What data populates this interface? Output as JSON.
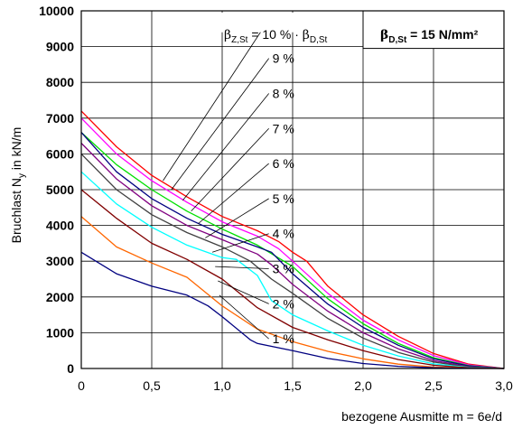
{
  "chart_data": {
    "type": "line",
    "ylabel_main": "Bruchlast N",
    "ylabel_sub": "y",
    "ylabel_rest": " in kN/m",
    "xlabel": "bezogene Ausmitte m = 6e/d",
    "box_title": {
      "main": "β",
      "sub": "D,St",
      "rest": " = 15 N/mm²"
    },
    "legend_title": {
      "b1": "β",
      "s1": "Z,St",
      "mid": " = 10 % · ",
      "b2": "β",
      "s2": "D,St"
    },
    "xlim": [
      0,
      3.0
    ],
    "ylim": [
      0,
      10000
    ],
    "x_ticks": [
      "0",
      "0,5",
      "1,0",
      "1,5",
      "2,0",
      "2,5",
      "3,0"
    ],
    "y_ticks": [
      "0",
      "1000",
      "2000",
      "3000",
      "4000",
      "5000",
      "6000",
      "7000",
      "8000",
      "9000",
      "10000"
    ],
    "grid": true,
    "series": [
      {
        "name": "10 %",
        "color": "#ff0000",
        "label_xy": [
          0.58,
          5250
        ],
        "x": [
          0,
          0.25,
          0.5,
          0.75,
          1.0,
          1.25,
          1.4,
          1.5,
          1.6,
          1.75,
          2.0,
          2.25,
          2.5,
          2.75,
          3.0
        ],
        "y": [
          7200,
          6200,
          5400,
          4800,
          4250,
          3850,
          3550,
          3250,
          3000,
          2300,
          1500,
          900,
          420,
          120,
          0
        ]
      },
      {
        "name": "9 %",
        "color": "#ff00ff",
        "label_xy": [
          0.64,
          5000
        ],
        "x": [
          0,
          0.25,
          0.5,
          0.75,
          1.0,
          1.25,
          1.4,
          1.5,
          1.75,
          2.0,
          2.25,
          2.5,
          2.75,
          3.0
        ],
        "y": [
          7000,
          6000,
          5250,
          4650,
          4100,
          3700,
          3350,
          3000,
          2100,
          1350,
          800,
          360,
          100,
          0
        ]
      },
      {
        "name": "8 %",
        "color": "#00e000",
        "label_xy": [
          0.72,
          4700
        ],
        "x": [
          0,
          0.25,
          0.5,
          0.75,
          1.0,
          1.25,
          1.5,
          1.75,
          2.0,
          2.25,
          2.5,
          2.75,
          3.0
        ],
        "y": [
          6600,
          5700,
          5000,
          4400,
          3900,
          3450,
          2850,
          1950,
          1250,
          700,
          300,
          80,
          0
        ]
      },
      {
        "name": "7 %",
        "color": "#000080",
        "label_xy": [
          0.78,
          4400
        ],
        "x": [
          0,
          0.25,
          0.5,
          0.75,
          1.0,
          1.25,
          1.35,
          1.5,
          1.75,
          2.0,
          2.25,
          2.5,
          2.75,
          3.0
        ],
        "y": [
          6600,
          5500,
          4750,
          4200,
          3750,
          3400,
          3250,
          2650,
          1800,
          1150,
          650,
          270,
          70,
          0
        ]
      },
      {
        "name": "6 %",
        "color": "#800080",
        "label_xy": [
          0.83,
          4050
        ],
        "x": [
          0,
          0.25,
          0.5,
          0.75,
          1.0,
          1.25,
          1.35,
          1.5,
          1.75,
          2.0,
          2.25,
          2.5,
          2.75,
          3.0
        ],
        "y": [
          6300,
          5300,
          4550,
          4000,
          3600,
          3200,
          2900,
          2350,
          1600,
          1000,
          550,
          220,
          50,
          0
        ]
      },
      {
        "name": "5 %",
        "color": "#404040",
        "label_xy": [
          0.88,
          3650
        ],
        "x": [
          0,
          0.25,
          0.5,
          0.75,
          1.0,
          1.2,
          1.35,
          1.5,
          1.75,
          2.0,
          2.25,
          2.5,
          2.75,
          3.0
        ],
        "y": [
          6000,
          5000,
          4300,
          3800,
          3400,
          3000,
          2500,
          2100,
          1400,
          850,
          450,
          180,
          40,
          0
        ]
      },
      {
        "name": "4 %",
        "color": "#00ffff",
        "label_xy": [
          0.93,
          3250
        ],
        "x": [
          0,
          0.25,
          0.5,
          0.75,
          1.0,
          1.1,
          1.25,
          1.35,
          1.5,
          1.75,
          2.0,
          2.25,
          2.5,
          2.75,
          3.0
        ],
        "y": [
          5500,
          4600,
          3950,
          3450,
          3100,
          3050,
          2600,
          1900,
          1500,
          1050,
          650,
          350,
          130,
          30,
          0
        ]
      },
      {
        "name": "3 %",
        "color": "#800000",
        "label_xy": [
          0.95,
          2850
        ],
        "x": [
          0,
          0.25,
          0.5,
          0.75,
          1.0,
          1.25,
          1.5,
          1.75,
          2.0,
          2.25,
          2.5,
          2.75,
          3.0
        ],
        "y": [
          5000,
          4200,
          3500,
          3050,
          2500,
          1700,
          1150,
          800,
          500,
          250,
          90,
          20,
          0
        ]
      },
      {
        "name": "2 %",
        "color": "#ff6600",
        "label_xy": [
          0.97,
          2450
        ],
        "x": [
          0,
          0.25,
          0.5,
          0.75,
          1.0,
          1.25,
          1.5,
          1.75,
          2.0,
          2.25,
          2.5,
          2.75,
          3.0
        ],
        "y": [
          4250,
          3400,
          2950,
          2550,
          1750,
          1100,
          750,
          480,
          270,
          120,
          40,
          10,
          0
        ]
      },
      {
        "name": "1 %",
        "color": "#000080",
        "label_xy": [
          0.98,
          2050
        ],
        "x": [
          0,
          0.25,
          0.5,
          0.75,
          0.9,
          1.0,
          1.2,
          1.25,
          1.5,
          1.75,
          2.0,
          2.25,
          2.5,
          2.75,
          3.0
        ],
        "y": [
          3250,
          2650,
          2300,
          2050,
          1750,
          1450,
          800,
          700,
          500,
          280,
          140,
          60,
          20,
          5,
          0
        ]
      }
    ],
    "pct_labels": [
      "9 %",
      "8 %",
      "7 %",
      "6 %",
      "5 %",
      "4 %",
      "3 %",
      "2 %",
      "1 %"
    ]
  }
}
